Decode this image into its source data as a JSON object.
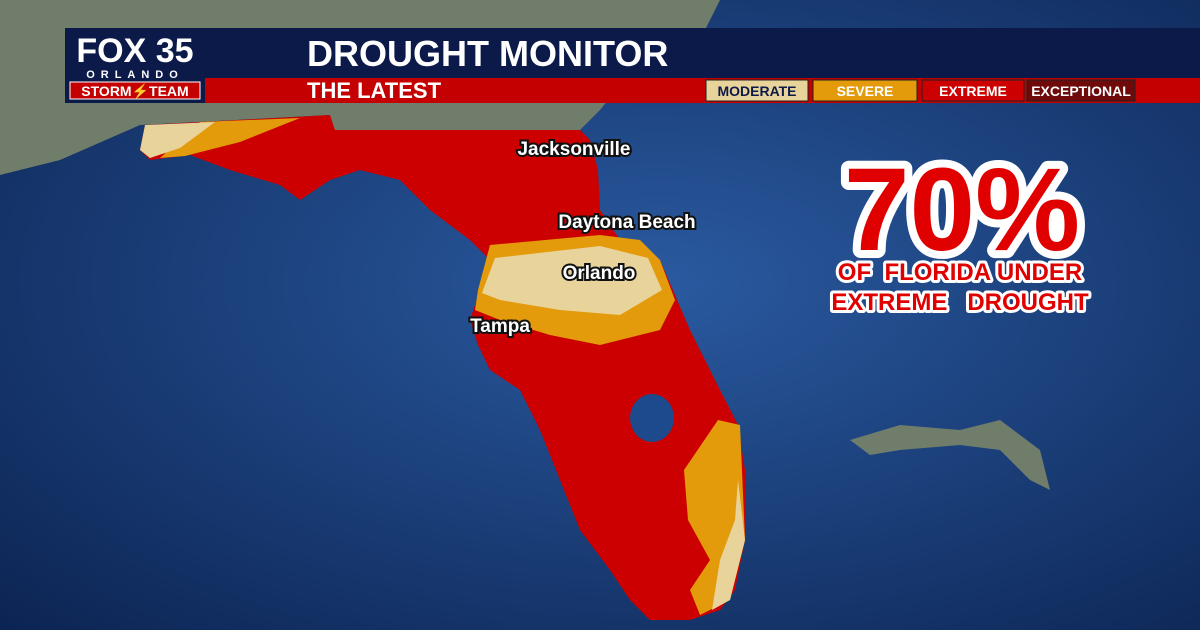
{
  "logo": {
    "brand": "FOX 35",
    "city": "ORLANDO",
    "team": "STORM⚡TEAM"
  },
  "header": {
    "title": "DROUGHT MONITOR",
    "subtitle": "THE LATEST"
  },
  "legend": [
    "MODERATE",
    "SEVERE",
    "EXTREME",
    "EXCEPTIONAL"
  ],
  "cities": [
    "Jacksonville",
    "Daytona Beach",
    "Orlando",
    "Tampa"
  ],
  "stat": {
    "value": "70%",
    "line1": "OF  FLORIDA UNDER",
    "line2": "EXTREME   DROUGHT"
  }
}
